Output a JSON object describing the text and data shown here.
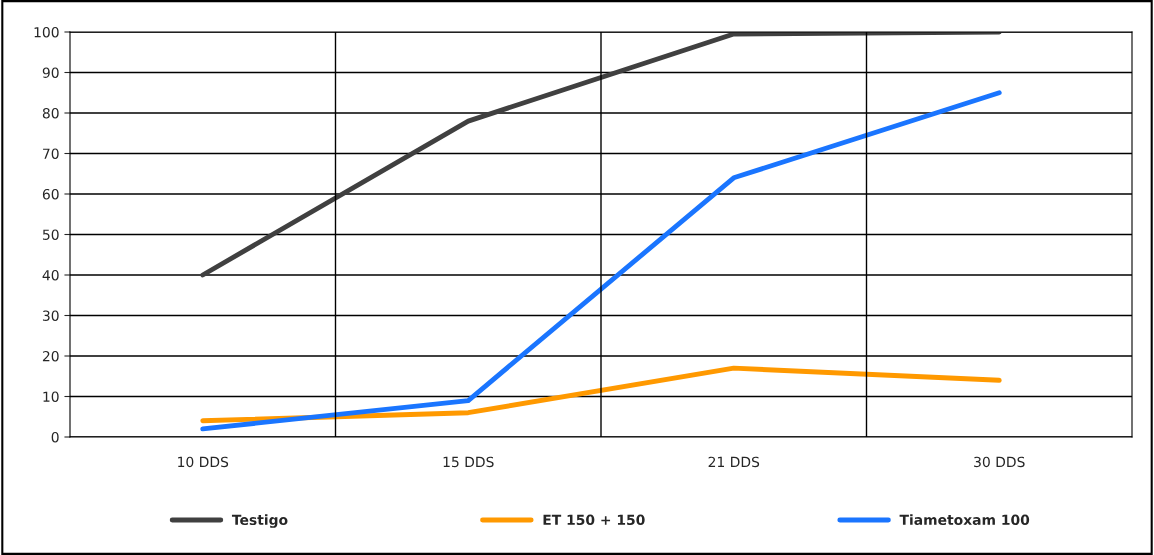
{
  "chart_data": {
    "type": "line",
    "categories": [
      "10 DDS",
      "15 DDS",
      "21 DDS",
      "30 DDS"
    ],
    "series": [
      {
        "name": "Testigo",
        "color": "#404040",
        "values": [
          40,
          78,
          99.5,
          100
        ]
      },
      {
        "name": "ET 150 + 150",
        "color": "#ff9900",
        "values": [
          4,
          6,
          17,
          14
        ]
      },
      {
        "name": "Tiametoxam 100",
        "color": "#1a75ff",
        "values": [
          2,
          9,
          64,
          85
        ]
      }
    ],
    "ylim": [
      0,
      100
    ],
    "yticks": [
      0,
      10,
      20,
      30,
      40,
      50,
      60,
      70,
      80,
      90,
      100
    ],
    "grid": true,
    "legend": "bottom",
    "marker": "none",
    "line_style": "solid"
  }
}
